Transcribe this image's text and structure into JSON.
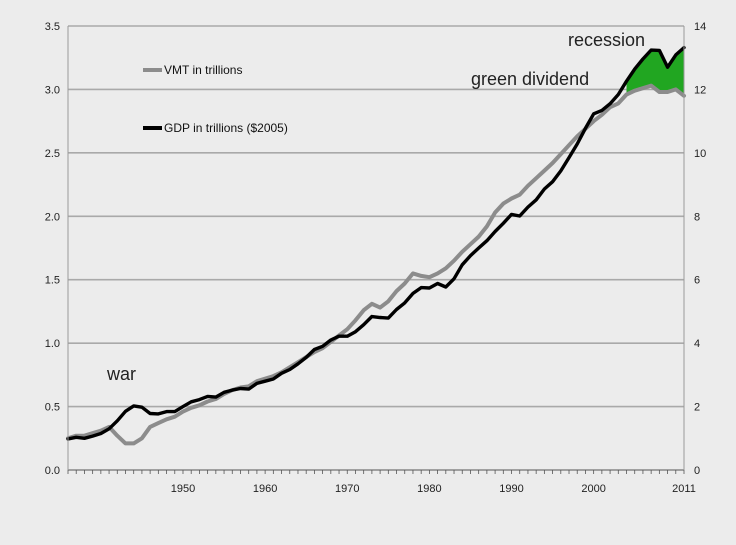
{
  "chart_data": {
    "type": "line",
    "title": "",
    "xlabel": "",
    "ylabel": "",
    "y2label": "",
    "xlim": [
      1936,
      2011
    ],
    "ylim": [
      0,
      3.5
    ],
    "y2lim": [
      0,
      14
    ],
    "x_ticks": [
      1950,
      1960,
      1970,
      1980,
      1990,
      2000,
      2011
    ],
    "x_tick_labels": [
      "1950",
      "1960",
      "1970",
      "1980",
      "1990",
      "2000",
      "2011"
    ],
    "y_ticks": [
      0,
      0.5,
      1,
      1.5,
      2,
      2.5,
      3,
      3.5
    ],
    "y_tick_labels": [
      "0.0",
      "0.5",
      "1.0",
      "1.5",
      "2.0",
      "2.5",
      "3.0",
      "3.5"
    ],
    "y2_ticks": [
      0,
      2,
      4,
      6,
      8,
      10,
      12,
      14
    ],
    "y2_tick_labels": [
      "0",
      "2",
      "4",
      "6",
      "8",
      "10",
      "12",
      "14"
    ],
    "grid": "horizontal",
    "legend_placement": "top-left",
    "series": [
      {
        "name": "VMT in trillions",
        "axis": "left",
        "color": "#8c8c8c",
        "x": [
          1936,
          1937,
          1938,
          1939,
          1940,
          1941,
          1942,
          1943,
          1944,
          1945,
          1946,
          1947,
          1948,
          1949,
          1950,
          1951,
          1952,
          1953,
          1954,
          1955,
          1956,
          1957,
          1958,
          1959,
          1960,
          1961,
          1962,
          1963,
          1964,
          1965,
          1966,
          1967,
          1968,
          1969,
          1970,
          1971,
          1972,
          1973,
          1974,
          1975,
          1976,
          1977,
          1978,
          1979,
          1980,
          1981,
          1982,
          1983,
          1984,
          1985,
          1986,
          1987,
          1988,
          1989,
          1990,
          1991,
          1992,
          1993,
          1994,
          1995,
          1996,
          1997,
          1998,
          1999,
          2000,
          2001,
          2002,
          2003,
          2004,
          2005,
          2006,
          2007,
          2008,
          2009,
          2010,
          2011
        ],
        "values": [
          0.25,
          0.27,
          0.27,
          0.29,
          0.31,
          0.34,
          0.27,
          0.21,
          0.21,
          0.25,
          0.34,
          0.37,
          0.4,
          0.42,
          0.46,
          0.49,
          0.51,
          0.54,
          0.56,
          0.6,
          0.63,
          0.65,
          0.66,
          0.7,
          0.72,
          0.74,
          0.77,
          0.81,
          0.85,
          0.89,
          0.93,
          0.96,
          1.01,
          1.06,
          1.11,
          1.18,
          1.26,
          1.31,
          1.28,
          1.33,
          1.41,
          1.47,
          1.55,
          1.53,
          1.52,
          1.55,
          1.59,
          1.65,
          1.72,
          1.78,
          1.84,
          1.92,
          2.03,
          2.1,
          2.14,
          2.17,
          2.24,
          2.3,
          2.36,
          2.42,
          2.49,
          2.56,
          2.63,
          2.69,
          2.75,
          2.8,
          2.86,
          2.89,
          2.96,
          2.99,
          3.01,
          3.03,
          2.98,
          2.98,
          3.0,
          2.95
        ]
      },
      {
        "name": "GDP in trillions ($2005)",
        "axis": "right",
        "color": "#000000",
        "x": [
          1936,
          1937,
          1938,
          1939,
          1940,
          1941,
          1942,
          1943,
          1944,
          1945,
          1946,
          1947,
          1948,
          1949,
          1950,
          1951,
          1952,
          1953,
          1954,
          1955,
          1956,
          1957,
          1958,
          1959,
          1960,
          1961,
          1962,
          1963,
          1964,
          1965,
          1966,
          1967,
          1968,
          1969,
          1970,
          1971,
          1972,
          1973,
          1974,
          1975,
          1976,
          1977,
          1978,
          1979,
          1980,
          1981,
          1982,
          1983,
          1984,
          1985,
          1986,
          1987,
          1988,
          1989,
          1990,
          1991,
          1992,
          1993,
          1994,
          1995,
          1996,
          1997,
          1998,
          1999,
          2000,
          2001,
          2002,
          2003,
          2004,
          2005,
          2006,
          2007,
          2008,
          2009,
          2010,
          2011
        ],
        "values": [
          0.98,
          1.03,
          1.0,
          1.07,
          1.15,
          1.3,
          1.55,
          1.85,
          2.02,
          1.98,
          1.78,
          1.77,
          1.84,
          1.84,
          2.0,
          2.15,
          2.22,
          2.32,
          2.3,
          2.45,
          2.52,
          2.57,
          2.55,
          2.73,
          2.8,
          2.87,
          3.05,
          3.17,
          3.35,
          3.55,
          3.8,
          3.9,
          4.1,
          4.22,
          4.22,
          4.36,
          4.58,
          4.84,
          4.81,
          4.79,
          5.06,
          5.27,
          5.57,
          5.75,
          5.74,
          5.88,
          5.77,
          6.03,
          6.47,
          6.76,
          7.0,
          7.23,
          7.52,
          7.78,
          8.06,
          8.01,
          8.29,
          8.52,
          8.86,
          9.09,
          9.43,
          9.85,
          10.28,
          10.77,
          11.23,
          11.34,
          11.55,
          11.84,
          12.26,
          12.64,
          12.96,
          13.24,
          13.23,
          12.7,
          13.09,
          13.32
        ]
      }
    ],
    "annotations": [
      {
        "text": "war",
        "x": 1941,
        "y": 0.7
      },
      {
        "text": "green dividend",
        "x": 1990,
        "y": 2.97
      },
      {
        "text": "recession",
        "x": 2007,
        "y": 3.36
      }
    ],
    "highlight": {
      "name": "green dividend",
      "color": "#21a621",
      "x_from": 2004,
      "x_to": 2011
    }
  }
}
